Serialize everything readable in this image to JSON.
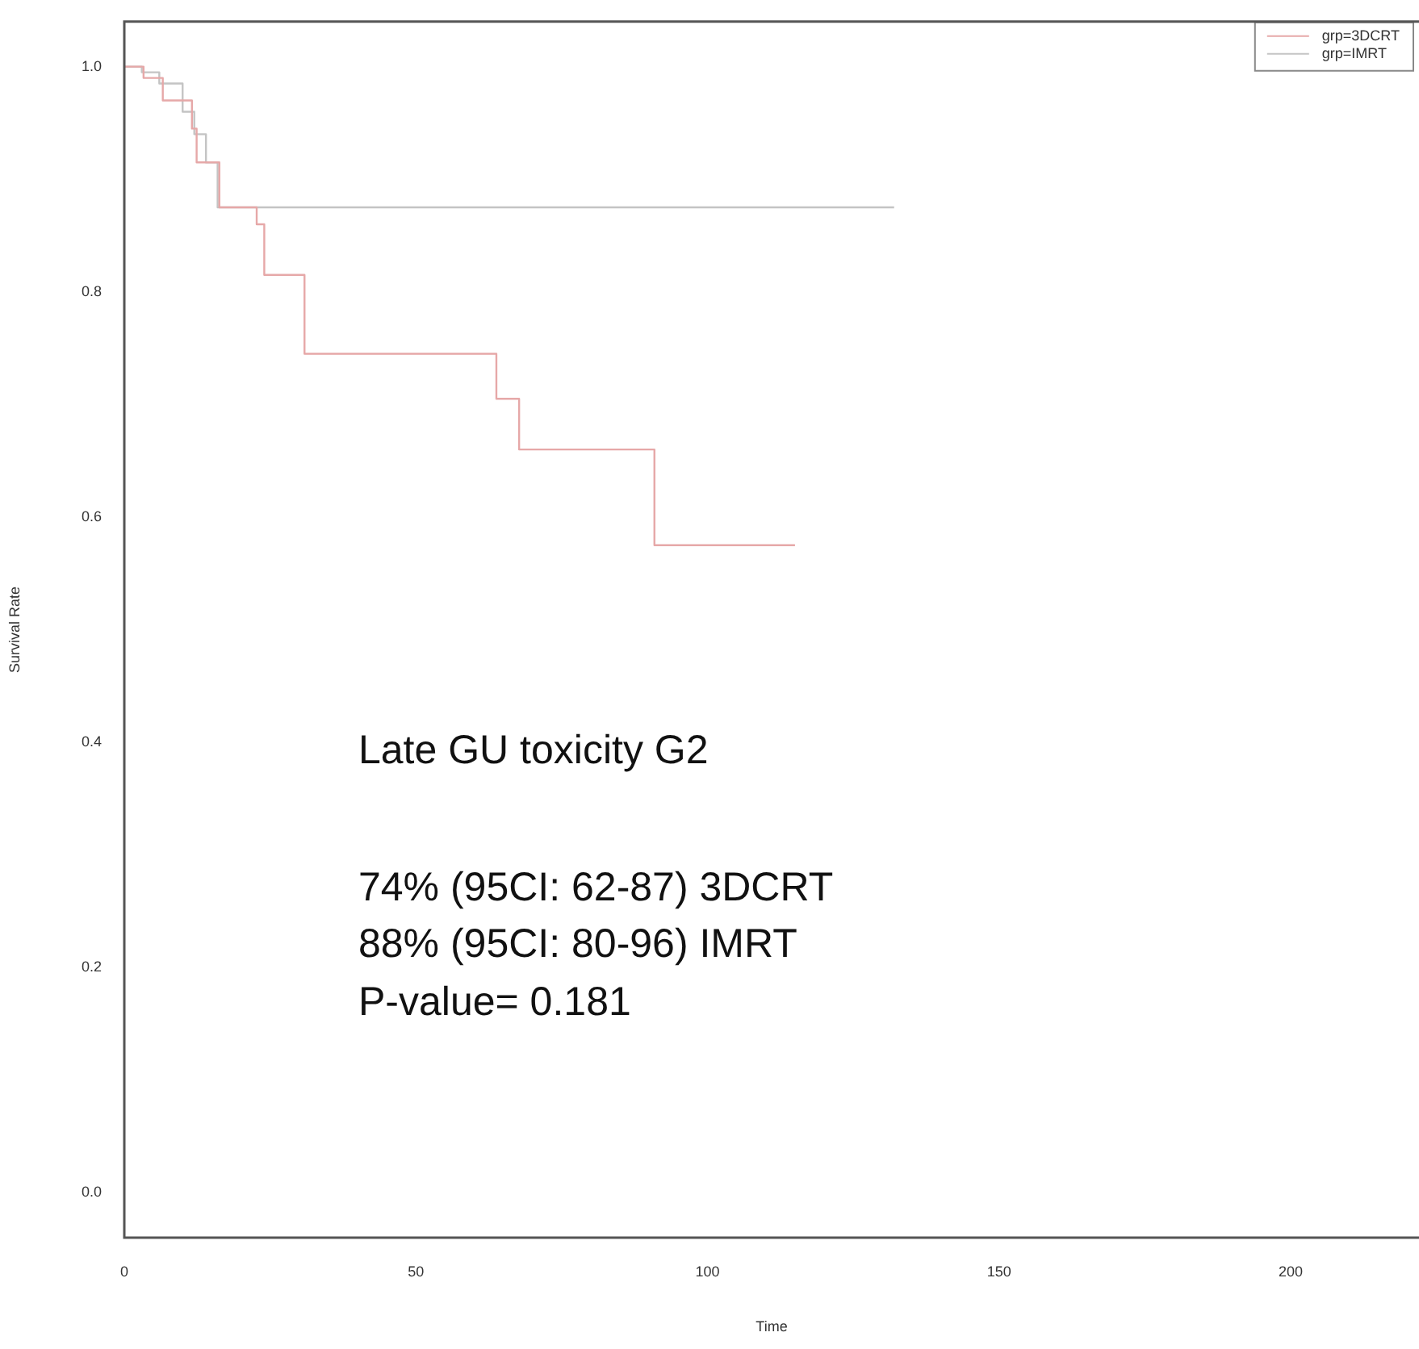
{
  "chart_data": {
    "type": "step",
    "xlabel": "Time",
    "ylabel": "Survival Rate",
    "xlim": [
      0,
      222
    ],
    "ylim": [
      -0.04,
      1.04
    ],
    "xticks": [
      0,
      50,
      100,
      150,
      200
    ],
    "yticks": [
      {
        "value": 0,
        "label": "0.0"
      },
      0.2,
      0.4,
      0.6,
      0.8,
      {
        "value": 1,
        "label": "1.0"
      }
    ],
    "series": [
      {
        "name": "grp=3DCRT",
        "color": "#e6a8a8",
        "x": [
          0,
          3.3,
          6.6,
          11.6,
          12.4,
          16.3,
          22.7,
          24,
          30.9,
          63.8,
          67.7,
          90.9,
          115
        ],
        "values": [
          1,
          0.99,
          0.97,
          0.945,
          0.915,
          0.875,
          0.86,
          0.815,
          0.745,
          0.705,
          0.66,
          0.575,
          0.575
        ]
      },
      {
        "name": "grp=IMRT",
        "color": "#c4c4c4",
        "x": [
          0,
          3,
          6,
          10,
          12,
          14,
          16,
          132
        ],
        "values": [
          1,
          0.995,
          0.985,
          0.96,
          0.94,
          0.915,
          0.875,
          0.875
        ]
      }
    ],
    "legend": "top right",
    "grid": false,
    "annotations": [
      "Late GU toxicity G2",
      "74% (95CI: 62-87) 3DCRT",
      "88% (95CI: 80-96) IMRT",
      "P-value= 0.181"
    ]
  }
}
